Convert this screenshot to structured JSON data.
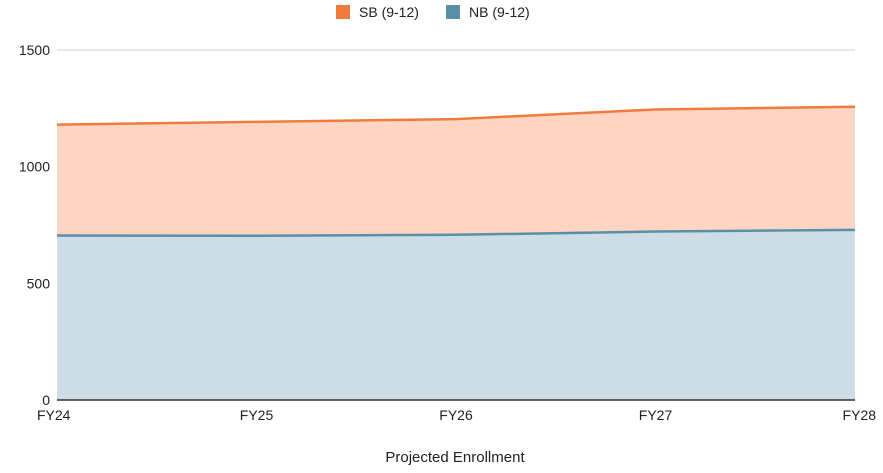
{
  "chart_data": {
    "type": "area",
    "stacked": true,
    "categories": [
      "FY24",
      "FY25",
      "FY26",
      "FY27",
      "FY28"
    ],
    "series": [
      {
        "name": "NB (9-12)",
        "color": "#5b8fa8",
        "fill": "#ccdde6",
        "values": [
          705,
          704,
          708,
          722,
          729
        ]
      },
      {
        "name": "SB (9-12)",
        "color": "#f07b3f",
        "fill": "#fdd5c2",
        "values": [
          475,
          488,
          496,
          523,
          528
        ]
      }
    ],
    "legend_order": [
      "SB (9-12)",
      "NB (9-12)"
    ],
    "xlabel": "Projected Enrollment",
    "ylabel": "",
    "ylim": [
      0,
      1500
    ],
    "yticks": [
      "0",
      "500",
      "1000",
      "1500"
    ],
    "grid": true,
    "legend_position": "top-center"
  }
}
